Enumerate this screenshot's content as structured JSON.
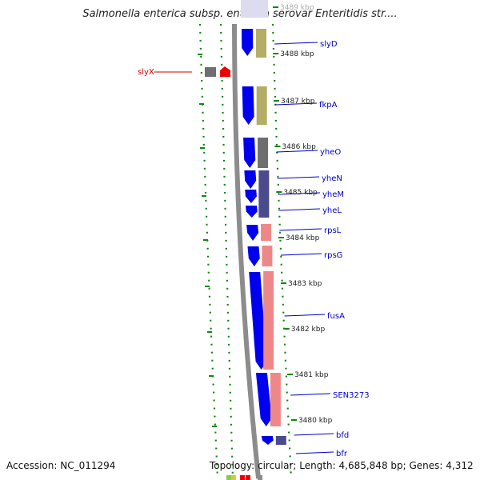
{
  "title": "Salmonella enterica subsp. enterica serovar Enteritidis str....",
  "footer": {
    "accession": "Accession: NC_011294",
    "summary": "Topology: circular; Length: 4,685,848 bp; Genes: 4,312"
  },
  "ticks": [
    {
      "label": "3489 kbp"
    },
    {
      "label": "3488 kbp"
    },
    {
      "label": "3487 kbp"
    },
    {
      "label": "3486 kbp"
    },
    {
      "label": "3485 kbp"
    },
    {
      "label": "3484 kbp"
    },
    {
      "label": "3483 kbp"
    },
    {
      "label": "3482 kbp"
    },
    {
      "label": "3481 kbp"
    },
    {
      "label": "3480 kbp"
    }
  ],
  "genes": [
    {
      "label": "slyD",
      "color": "#0000cc"
    },
    {
      "label": "fkpA",
      "color": "#0000cc"
    },
    {
      "label": "yheO",
      "color": "#0000cc"
    },
    {
      "label": "yheN",
      "color": "#0000cc"
    },
    {
      "label": "yheM",
      "color": "#0000cc"
    },
    {
      "label": "yheL",
      "color": "#0000cc"
    },
    {
      "label": "rpsL",
      "color": "#0000cc"
    },
    {
      "label": "rpsG",
      "color": "#0000cc"
    },
    {
      "label": "fusA",
      "color": "#0000cc"
    },
    {
      "label": "SEN3273",
      "color": "#0000cc"
    },
    {
      "label": "bfd",
      "color": "#0000cc"
    },
    {
      "label": "bfr",
      "color": "#0000cc"
    },
    {
      "label": "slyX",
      "color": "#cc0000"
    }
  ],
  "colors": {
    "cds": "#0000ee",
    "backbone": "#8c8c8c",
    "cog_khaki": "#b3ad66",
    "cog_gray": "#6e6e6e",
    "cog_purple": "#4a4a8c",
    "cog_pink": "#ee8888",
    "gc_skew": "#118811",
    "red_gene": "#ee0000"
  }
}
